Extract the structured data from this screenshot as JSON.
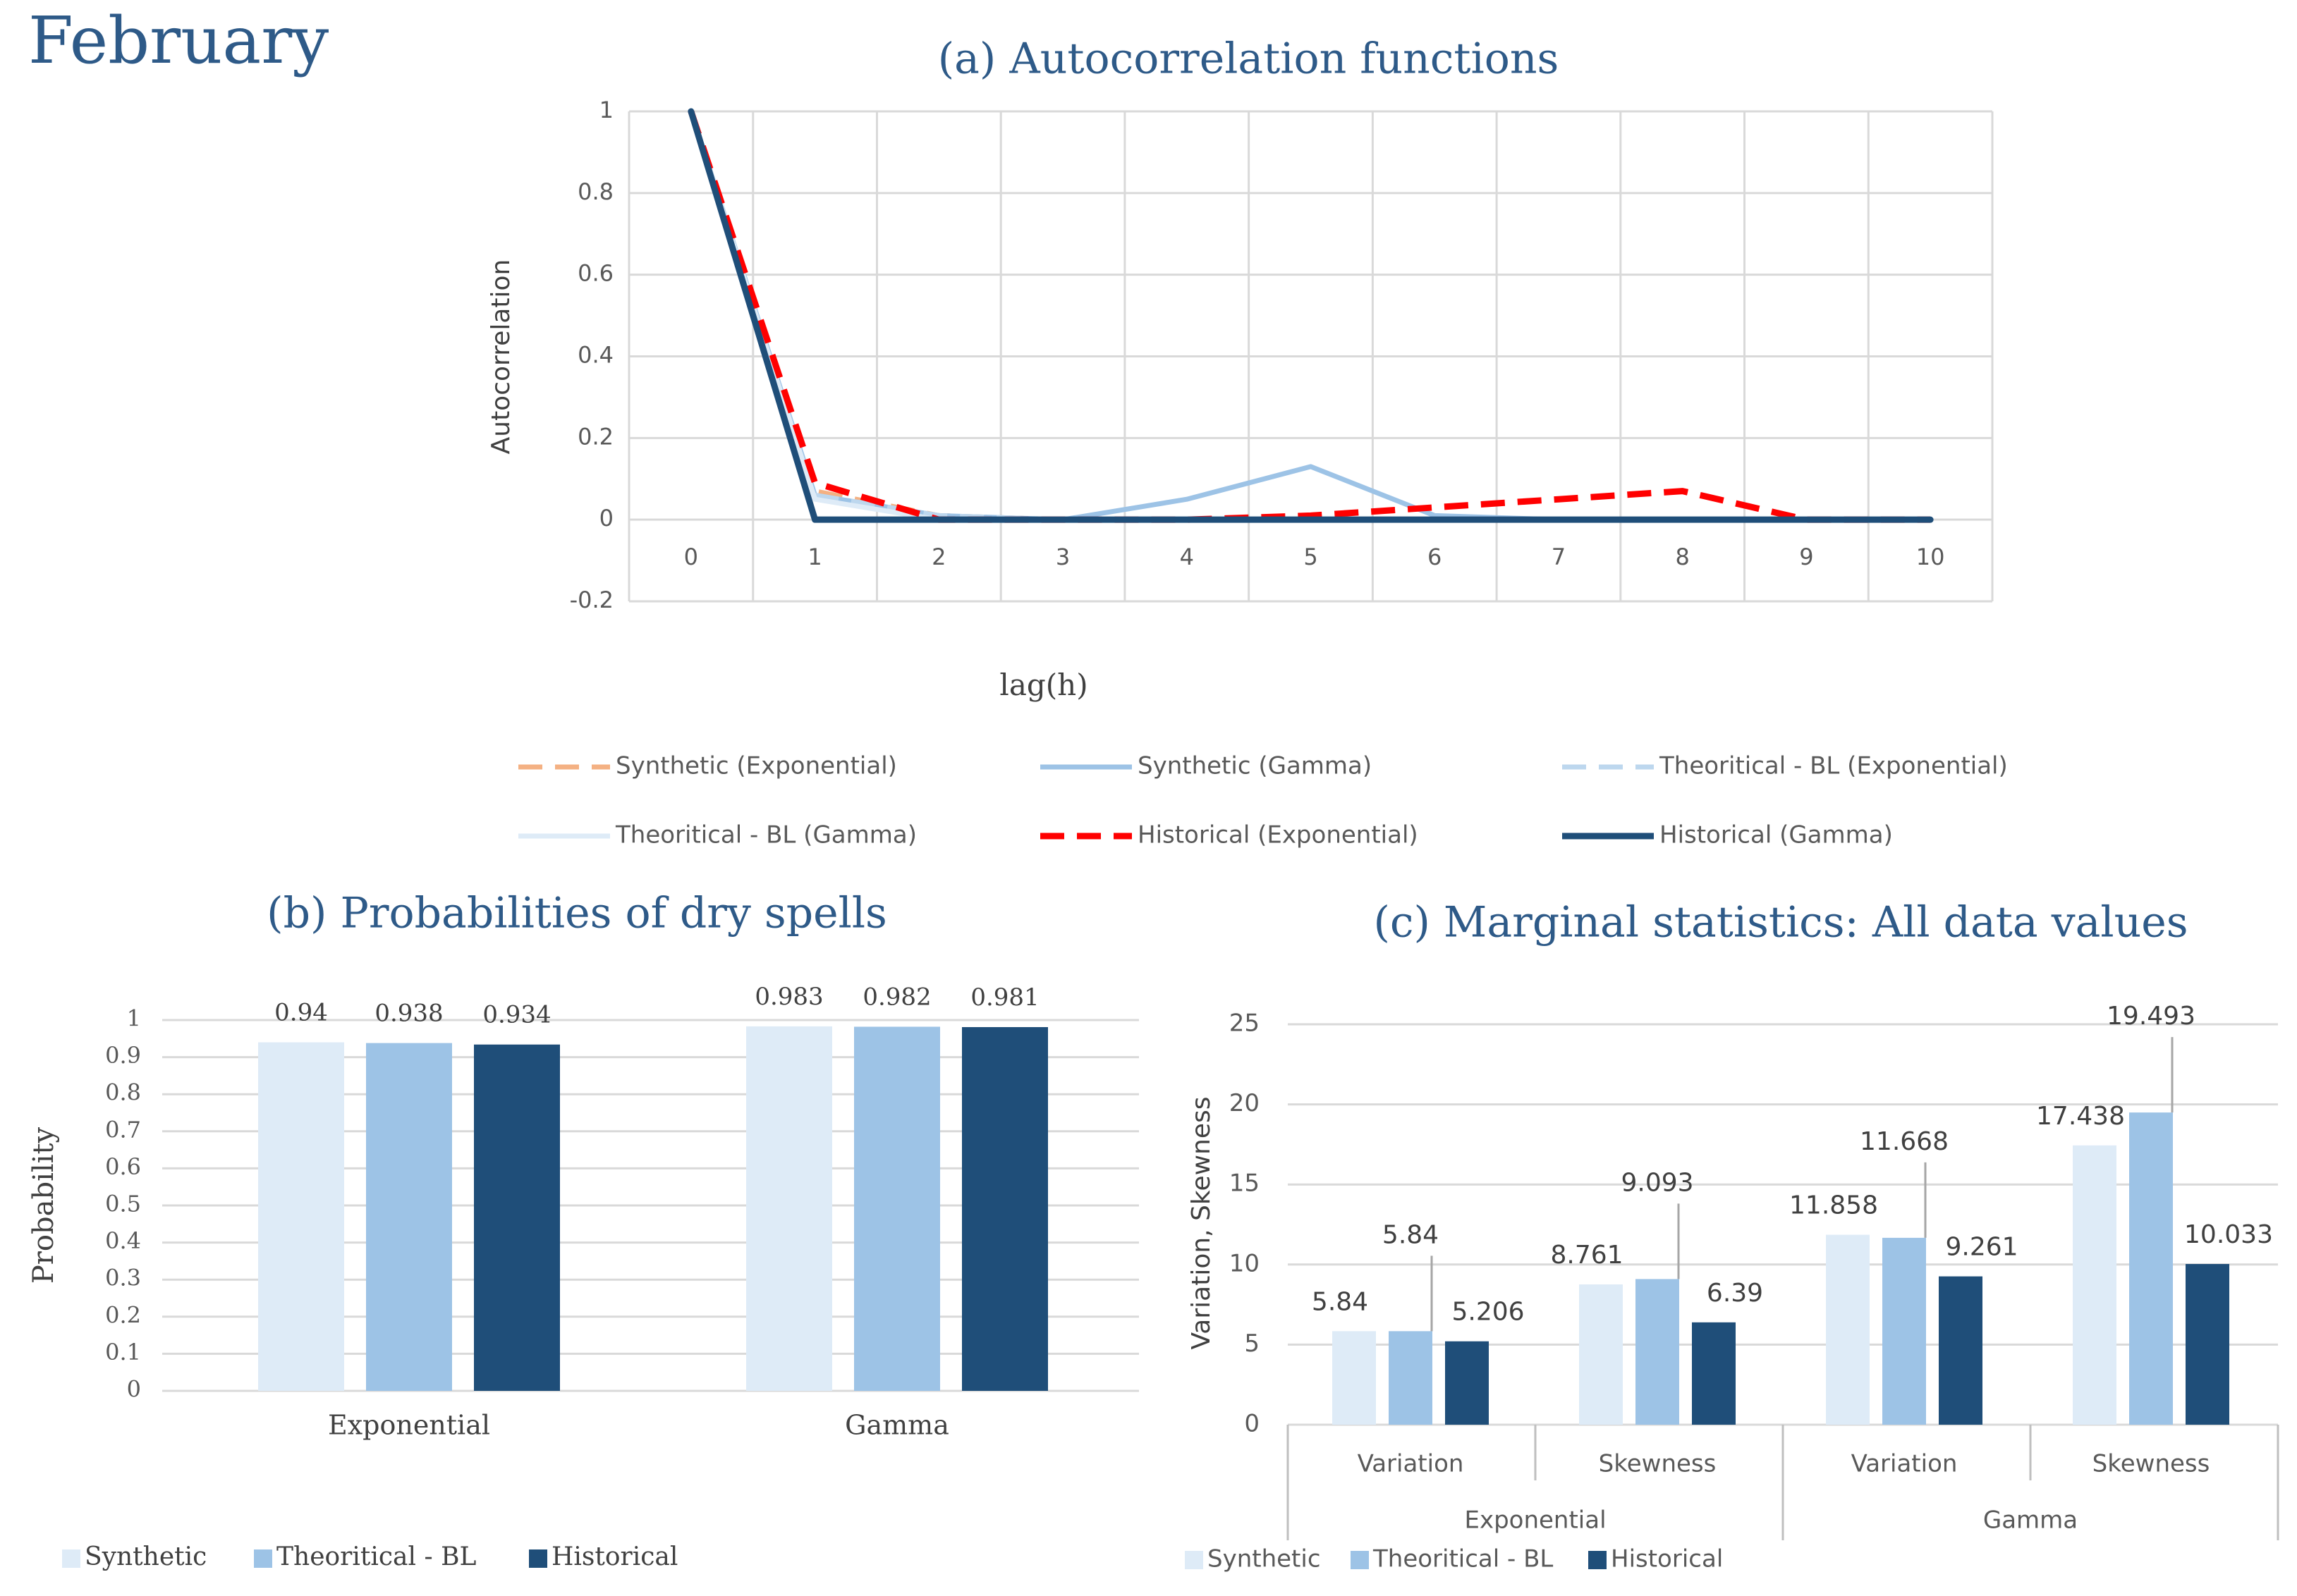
{
  "page_title": "February",
  "colors": {
    "title": "#2e5a88",
    "synthetic_exp": "#f4b183",
    "synthetic_gamma": "#9dc3e6",
    "theoretical_exp": "#bdd7ee",
    "theoretical_gamma": "#deebf7",
    "historical_exp": "#ff0000",
    "historical_gamma": "#1f4e79",
    "bar_synthetic": "#deebf7",
    "bar_theoretical": "#9dc3e6",
    "bar_historical": "#1f4e79",
    "grid": "#d9d9d9",
    "text": "#595959"
  },
  "chart_data": [
    {
      "type": "line",
      "title": "(a) Autocorrelation functions",
      "xlabel": "lag(h)",
      "ylabel": "Autocorrelation",
      "x": [
        0,
        1,
        2,
        3,
        4,
        5,
        6,
        7,
        8,
        9,
        10
      ],
      "ylim": [
        -0.2,
        1
      ],
      "yticks": [
        "1",
        "0.8",
        "0.6",
        "0.4",
        "0.2",
        "0",
        "-0.2"
      ],
      "grid": true,
      "legend_position": "bottom",
      "series": [
        {
          "name": "Synthetic (Exponential)",
          "style": "dashed",
          "values": [
            1,
            0.07,
            0.01,
            0,
            0,
            0,
            0,
            0,
            0,
            0,
            0
          ]
        },
        {
          "name": "Synthetic (Gamma)",
          "style": "solid",
          "values": [
            1,
            0.06,
            0.01,
            0,
            0.05,
            0.13,
            0.01,
            0,
            0,
            0,
            0
          ]
        },
        {
          "name": "Theoritical - BL (Exponential)",
          "style": "dashed",
          "values": [
            1,
            0.06,
            0.01,
            0,
            0,
            0,
            0,
            0,
            0,
            0,
            0
          ]
        },
        {
          "name": "Theoritical - BL (Gamma)",
          "style": "solid",
          "values": [
            1,
            0.05,
            0,
            0,
            0,
            0,
            0,
            0,
            0,
            0,
            0
          ]
        },
        {
          "name": "Historical (Exponential)",
          "style": "dashed",
          "values": [
            1,
            0.09,
            0,
            0,
            0,
            0.01,
            0.03,
            0.05,
            0.07,
            0,
            0
          ]
        },
        {
          "name": "Historical (Gamma)",
          "style": "solid",
          "values": [
            1,
            0,
            0,
            0,
            0,
            0,
            0,
            0,
            0,
            0,
            0
          ]
        }
      ]
    },
    {
      "type": "bar",
      "title": "(b) Probabilities of dry spells",
      "ylabel": "Probability",
      "categories": [
        "Exponential",
        "Gamma"
      ],
      "ylim": [
        0,
        1
      ],
      "yticks": [
        "1",
        "0.9",
        "0.8",
        "0.7",
        "0.6",
        "0.5",
        "0.4",
        "0.3",
        "0.2",
        "0.1",
        "0"
      ],
      "legend_position": "bottom",
      "series": [
        {
          "name": "Synthetic",
          "values": [
            0.94,
            0.983
          ],
          "labels": [
            "0.94",
            "0.983"
          ]
        },
        {
          "name": "Theoritical - BL",
          "values": [
            0.938,
            0.982
          ],
          "labels": [
            "0.938",
            "0.982"
          ]
        },
        {
          "name": "Historical",
          "values": [
            0.934,
            0.981
          ],
          "labels": [
            "0.934",
            "0.981"
          ]
        }
      ]
    },
    {
      "type": "bar",
      "title": "(c) Marginal statistics: All data values",
      "ylabel": "Variation, Skewness",
      "groups": [
        "Exponential",
        "Gamma"
      ],
      "categories": [
        "Variation",
        "Skewness",
        "Variation",
        "Skewness"
      ],
      "ylim": [
        0,
        25
      ],
      "yticks": [
        "25",
        "20",
        "15",
        "10",
        "5",
        "0"
      ],
      "legend_position": "bottom",
      "series": [
        {
          "name": "Synthetic",
          "values": [
            5.84,
            8.761,
            11.858,
            17.438
          ],
          "labels": [
            "5.84",
            "8.761",
            "11.858",
            "17.438"
          ]
        },
        {
          "name": "Theoritical - BL",
          "values": [
            5.84,
            9.093,
            11.668,
            19.493
          ],
          "labels": [
            "5.84",
            "9.093",
            "11.668",
            "19.493"
          ]
        },
        {
          "name": "Historical",
          "values": [
            5.206,
            6.39,
            9.261,
            10.033
          ],
          "labels": [
            "5.206",
            "6.39",
            "9.261",
            "10.033"
          ]
        }
      ]
    }
  ]
}
